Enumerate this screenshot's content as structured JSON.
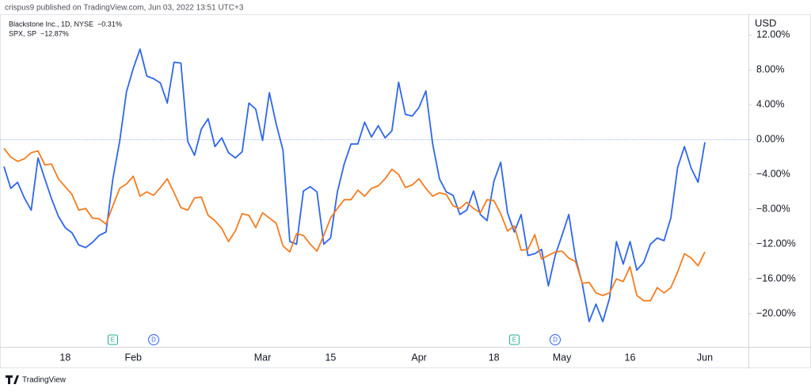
{
  "header": "crispus9 published on TradingView.com, Jun 03, 2022 13:51 UTC+3",
  "footer": "TradingView",
  "chart_data": {
    "type": "line",
    "unit": "USD",
    "categories": [
      null,
      null,
      null,
      null,
      null,
      null,
      null,
      null,
      null,
      "18",
      null,
      null,
      null,
      null,
      null,
      null,
      null,
      null,
      null,
      "Feb",
      null,
      null,
      null,
      null,
      null,
      null,
      null,
      null,
      null,
      null,
      null,
      null,
      null,
      null,
      null,
      null,
      null,
      null,
      "Mar",
      null,
      null,
      null,
      null,
      null,
      null,
      null,
      null,
      null,
      "15",
      null,
      null,
      null,
      null,
      null,
      null,
      null,
      null,
      null,
      null,
      null,
      null,
      "Apr",
      null,
      null,
      null,
      null,
      null,
      null,
      null,
      null,
      null,
      null,
      "18",
      null,
      null,
      null,
      null,
      null,
      null,
      null,
      null,
      null,
      "May",
      null,
      null,
      null,
      null,
      null,
      null,
      null,
      null,
      null,
      "16",
      null,
      null,
      null,
      null,
      null,
      null,
      null,
      null,
      null,
      null,
      "Jun"
    ],
    "series": [
      {
        "name": "Blackstone Inc., 1D, NYSE",
        "change": "−0.31%",
        "color": "#2e66ec",
        "values": [
          -3.1,
          -5.6,
          -4.9,
          -6.7,
          -8.1,
          -2.1,
          -4.5,
          -6.8,
          -8.8,
          -10.1,
          -10.7,
          -12.1,
          -12.4,
          -11.8,
          -11.0,
          -10.6,
          -4.5,
          -0.2,
          5.5,
          8.2,
          10.4,
          7.3,
          7.0,
          6.5,
          4.2,
          8.9,
          8.8,
          -0.2,
          -1.8,
          1.2,
          2.4,
          -0.8,
          0.2,
          -1.5,
          -2.1,
          -1.4,
          4.2,
          3.5,
          -0.1,
          5.4,
          1.8,
          -1.2,
          -11.7,
          -12.0,
          -5.9,
          -5.4,
          -6.0,
          -12.0,
          -11.3,
          -6.0,
          -2.8,
          -0.5,
          -0.5,
          2.0,
          0.3,
          1.6,
          0.2,
          1.0,
          6.6,
          2.9,
          2.7,
          3.7,
          5.6,
          -0.5,
          -4.5,
          -6.0,
          -6.4,
          -8.6,
          -8.1,
          -5.9,
          -8.6,
          -9.3,
          -4.8,
          -2.6,
          -8.4,
          -10.6,
          -8.6,
          -13.3,
          -13.1,
          -12.6,
          -16.8,
          -13.3,
          -11.0,
          -8.6,
          -13.6,
          -16.6,
          -20.9,
          -18.9,
          -20.9,
          -18.2,
          -11.7,
          -14.3,
          -11.7,
          -15.0,
          -14.1,
          -12.0,
          -11.3,
          -11.6,
          -9.0,
          -3.2,
          -0.8,
          -3.3,
          -4.9,
          -0.3
        ]
      },
      {
        "name": "SPX, SP",
        "change": "−12.87%",
        "color": "#f57c1f",
        "values": [
          -1.0,
          -2.0,
          -2.5,
          -2.2,
          -1.5,
          -1.3,
          -2.9,
          -2.8,
          -4.5,
          -5.4,
          -6.3,
          -8.1,
          -7.9,
          -9.0,
          -9.1,
          -9.7,
          -7.6,
          -5.6,
          -5.1,
          -4.2,
          -6.5,
          -6.0,
          -6.4,
          -5.5,
          -4.5,
          -6.1,
          -7.8,
          -8.1,
          -6.7,
          -6.6,
          -8.7,
          -9.3,
          -10.2,
          -11.7,
          -10.5,
          -8.5,
          -8.7,
          -10.1,
          -8.4,
          -9.0,
          -9.6,
          -12.2,
          -12.9,
          -10.8,
          -11.0,
          -12.0,
          -12.8,
          -11.0,
          -9.0,
          -7.9,
          -6.9,
          -6.9,
          -5.8,
          -6.5,
          -5.6,
          -5.3,
          -4.5,
          -3.4,
          -4.0,
          -5.5,
          -5.2,
          -4.5,
          -5.6,
          -6.5,
          -6.1,
          -6.3,
          -7.6,
          -7.9,
          -7.2,
          -7.9,
          -8.4,
          -6.9,
          -7.0,
          -8.5,
          -10.5,
          -9.9,
          -12.7,
          -12.6,
          -10.9,
          -13.7,
          -13.3,
          -12.9,
          -12.8,
          -13.6,
          -14.0,
          -16.5,
          -16.4,
          -17.6,
          -17.9,
          -17.6,
          -16.0,
          -16.3,
          -14.6,
          -17.9,
          -18.5,
          -18.5,
          -17.0,
          -17.6,
          -17.0,
          -15.2,
          -13.1,
          -13.6,
          -14.5,
          -12.9
        ]
      }
    ],
    "ylim": [
      -23.8,
      14.4
    ],
    "yticks": [
      {
        "value": 12,
        "label": "12.00%"
      },
      {
        "value": 8,
        "label": "8.00%"
      },
      {
        "value": 4,
        "label": "4.00%"
      },
      {
        "value": 0,
        "label": "0.00%"
      },
      {
        "value": -4,
        "label": "−4.00%"
      },
      {
        "value": -8,
        "label": "−8.00%"
      },
      {
        "value": -12,
        "label": "−12.00%"
      },
      {
        "value": -16,
        "label": "−16.00%"
      },
      {
        "value": -20,
        "label": "−20.00%"
      }
    ],
    "baseline": 0,
    "events": [
      {
        "label": "E",
        "at": 16,
        "color": "#22ab94"
      },
      {
        "label": "D",
        "at": 22,
        "color": "#2962ff"
      },
      {
        "label": "E",
        "at": 75,
        "color": "#22ab94"
      },
      {
        "label": "D",
        "at": 81,
        "color": "#2962ff"
      }
    ]
  }
}
